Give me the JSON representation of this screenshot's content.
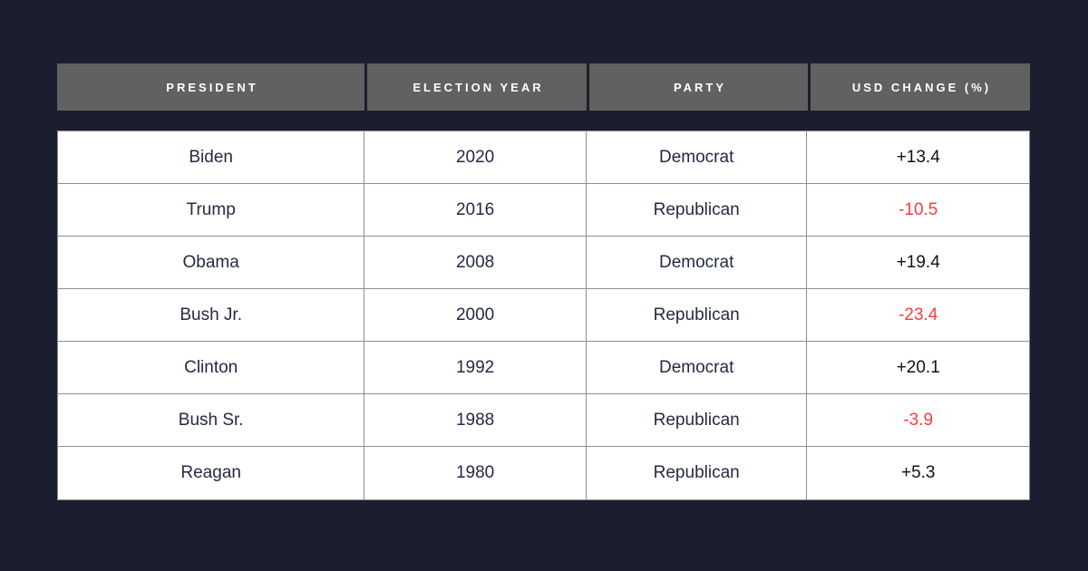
{
  "page": {
    "background_color": "#1b1e2e"
  },
  "table": {
    "columns": [
      {
        "label": "PRESIDENT"
      },
      {
        "label": "ELECTION YEAR"
      },
      {
        "label": "PARTY"
      },
      {
        "label": "USD CHANGE (%)"
      }
    ],
    "rows": [
      {
        "president": "Biden",
        "year": "2020",
        "party": "Democrat",
        "usd_change": "+13.4"
      },
      {
        "president": "Trump",
        "year": "2016",
        "party": "Republican",
        "usd_change": "-10.5"
      },
      {
        "president": "Obama",
        "year": "2008",
        "party": "Democrat",
        "usd_change": "+19.4"
      },
      {
        "president": "Bush Jr.",
        "year": "2000",
        "party": "Republican",
        "usd_change": "-23.4"
      },
      {
        "president": "Clinton",
        "year": "1992",
        "party": "Democrat",
        "usd_change": "+20.1"
      },
      {
        "president": "Bush Sr.",
        "year": "1988",
        "party": "Republican",
        "usd_change": "-3.9"
      },
      {
        "president": "Reagan",
        "year": "1980",
        "party": "Republican",
        "usd_change": "+5.3"
      }
    ],
    "colors": {
      "header_background": "#616161",
      "header_text": "#ffffff",
      "row_background": "#ffffff",
      "cell_border": "#8e8e99",
      "body_text": "#252a41",
      "positive_change": "#121212",
      "negative_change": "#fb3c3c"
    }
  },
  "chart_data": {
    "type": "table",
    "columns": [
      "PRESIDENT",
      "ELECTION YEAR",
      "PARTY",
      "USD CHANGE (%)"
    ],
    "rows": [
      [
        "Biden",
        "2020",
        "Democrat",
        "+13.4"
      ],
      [
        "Trump",
        "2016",
        "Republican",
        "-10.5"
      ],
      [
        "Obama",
        "2008",
        "Democrat",
        "+19.4"
      ],
      [
        "Bush Jr.",
        "2000",
        "Republican",
        "-23.4"
      ],
      [
        "Clinton",
        "1992",
        "Democrat",
        "+20.1"
      ],
      [
        "Bush Sr.",
        "1988",
        "Republican",
        "-3.9"
      ],
      [
        "Reagan",
        "1980",
        "Republican",
        "+5.3"
      ]
    ],
    "usd_change_numeric": [
      13.4,
      -10.5,
      19.4,
      -23.4,
      20.1,
      -3.9,
      5.3
    ],
    "negative_values_highlighted_red": true
  }
}
